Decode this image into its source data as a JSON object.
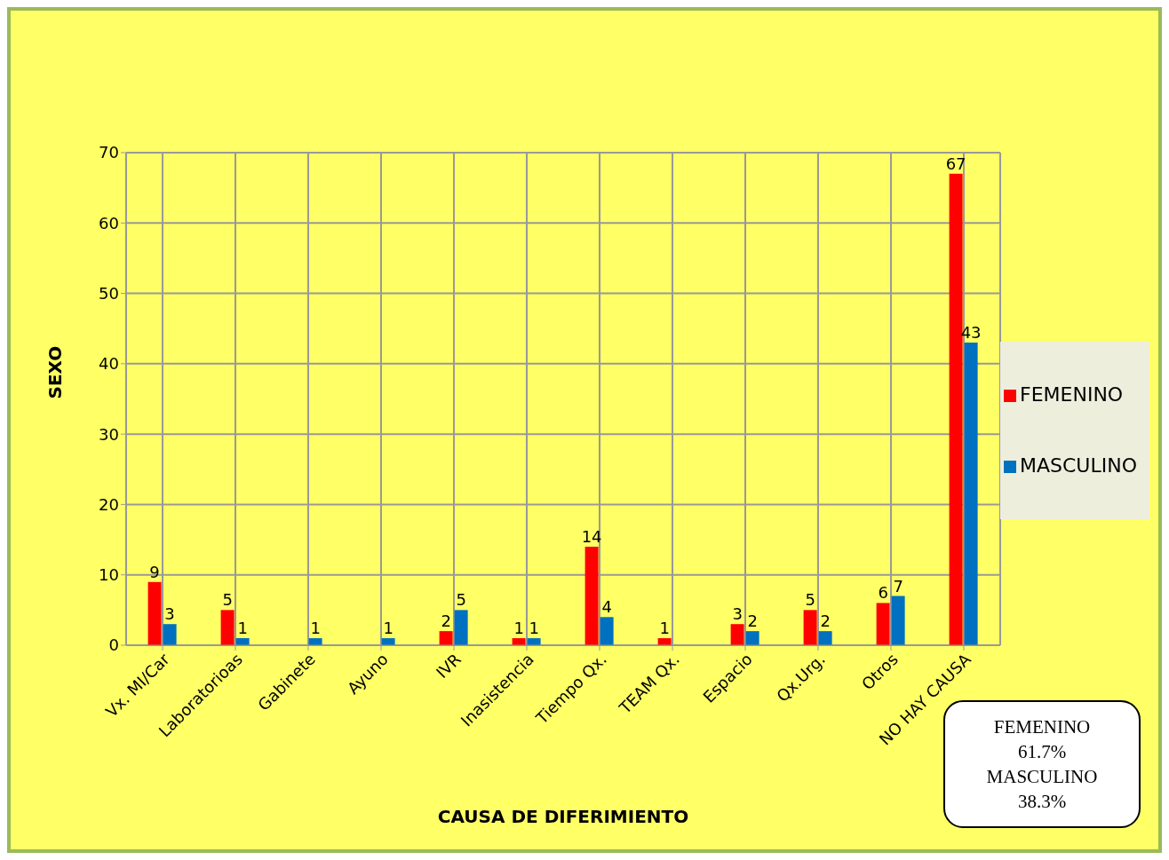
{
  "chart_data": {
    "type": "bar",
    "xlabel": "CAUSA DE DIFERIMIENTO",
    "ylabel": "SEXO",
    "categories": [
      "Vx. MI/Car",
      "Laboratorioas",
      "Gabinete",
      "Ayuno",
      "IVR",
      "Inasistencia",
      "Tiempo Qx.",
      "TEAM Qx.",
      "Espacio",
      "Qx.Urg.",
      "Otros",
      "NO HAY CAUSA"
    ],
    "series": [
      {
        "name": "FEMENINO",
        "color": "#ff0000",
        "values": [
          9,
          5,
          0,
          0,
          2,
          1,
          14,
          1,
          3,
          5,
          6,
          67
        ],
        "value_labels": [
          "9",
          "5",
          null,
          null,
          "2",
          "1",
          "14",
          "1",
          "3",
          "5",
          "6",
          "67"
        ]
      },
      {
        "name": "MASCULINO",
        "color": "#0070c0",
        "values": [
          3,
          1,
          1,
          1,
          5,
          1,
          4,
          0,
          2,
          2,
          7,
          43
        ],
        "value_labels": [
          "3",
          "1",
          "1",
          "1",
          "5",
          "1",
          "4",
          null,
          "2",
          "2",
          "7",
          "43"
        ]
      }
    ],
    "ylim": [
      0,
      70
    ],
    "yticks": [
      0,
      10,
      20,
      30,
      40,
      50,
      60,
      70
    ],
    "grid": true,
    "legend": "right",
    "annotations": [
      "FEMENINO\n61.7%\nMASCULINO\n38.3%"
    ]
  }
}
